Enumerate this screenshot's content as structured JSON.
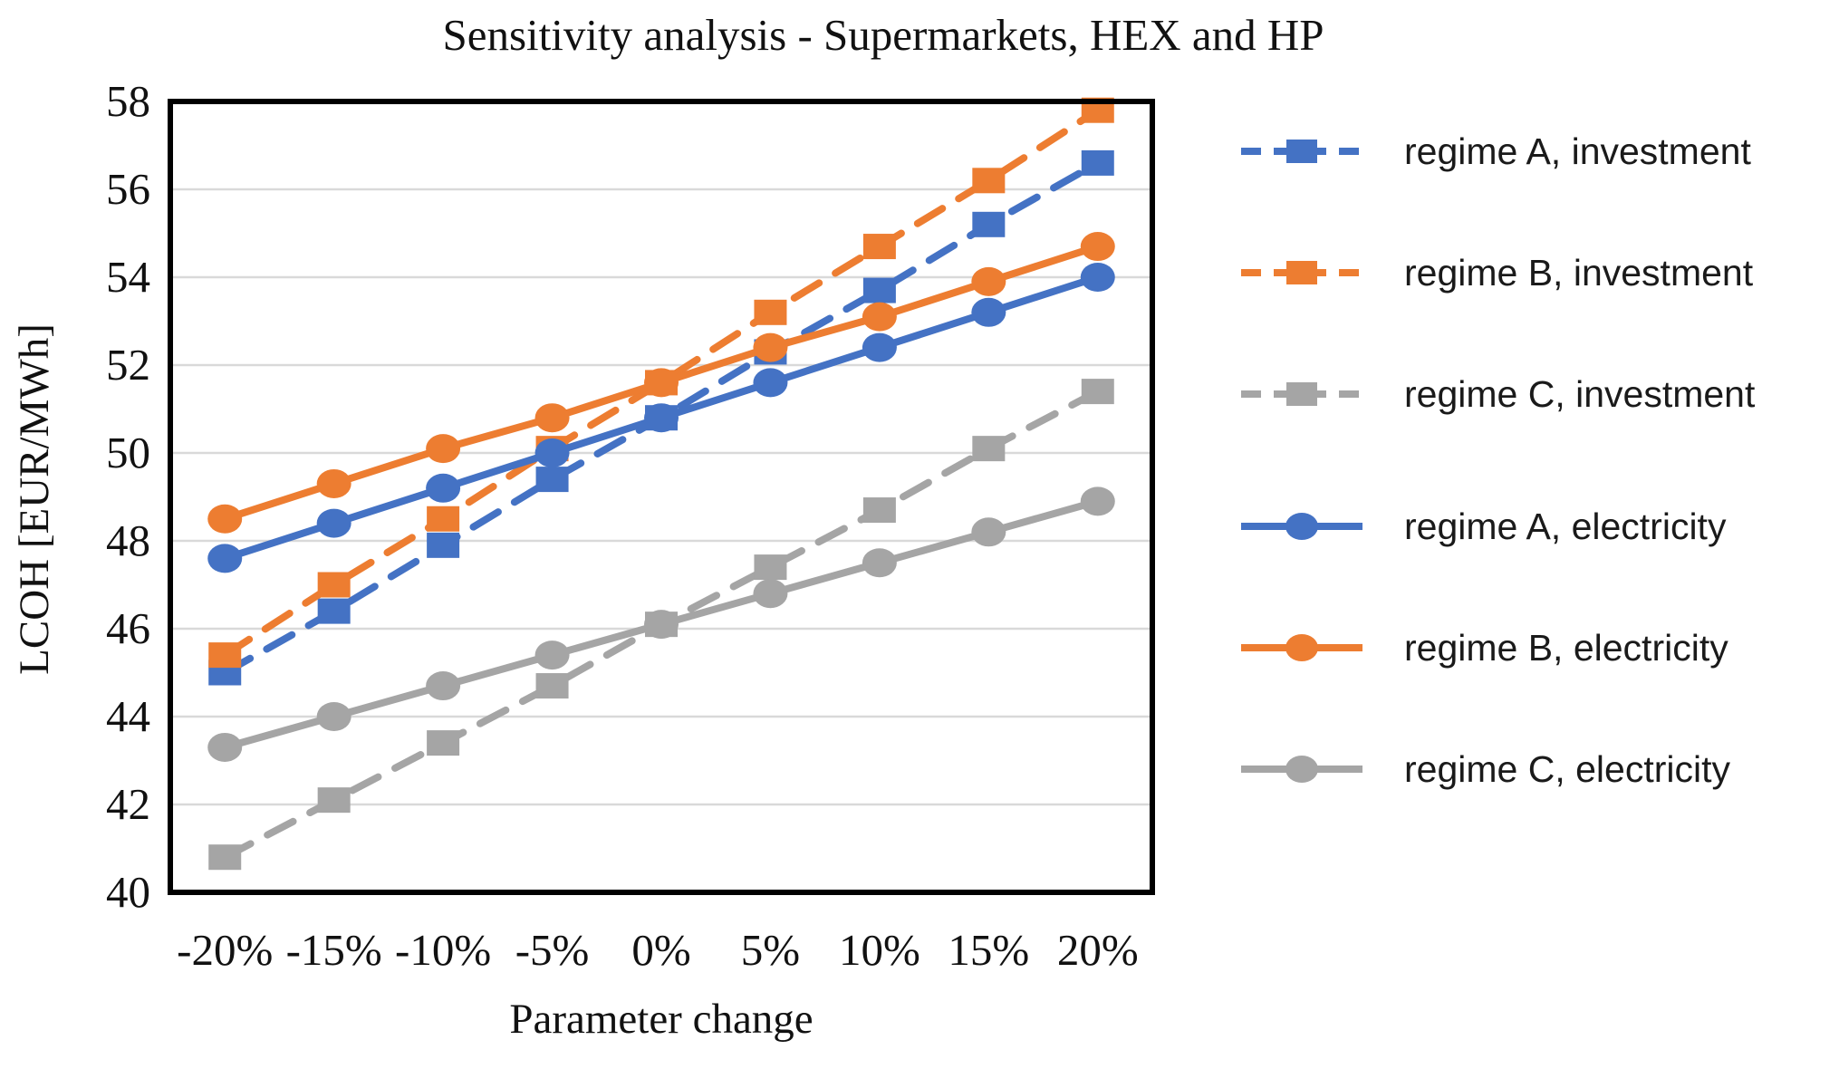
{
  "chart_data": {
    "type": "line",
    "title": "Sensitivity analysis - Supermarkets, HEX and HP",
    "xlabel": "Parameter change",
    "ylabel": "LCOH [EUR/MWh]",
    "ylim": [
      40,
      58
    ],
    "yticks": [
      40,
      42,
      44,
      46,
      48,
      50,
      52,
      54,
      56,
      58
    ],
    "categories": [
      "-20%",
      "-15%",
      "-10%",
      "-5%",
      "0%",
      "5%",
      "10%",
      "15%",
      "20%"
    ],
    "grid": "horizontal",
    "legend_position": "right",
    "colors": {
      "blue": "#4472C4",
      "orange": "#ED7D31",
      "gray": "#A5A5A5",
      "gridline": "#D9D9D9",
      "frame": "#000000"
    },
    "series": [
      {
        "name": "regime A, investment",
        "color": "#4472C4",
        "line": "dashed",
        "marker": "square",
        "values": [
          45.0,
          46.4,
          47.9,
          49.4,
          50.8,
          52.3,
          53.7,
          55.2,
          56.6
        ]
      },
      {
        "name": "regime B, investment",
        "color": "#ED7D31",
        "line": "dashed",
        "marker": "square",
        "values": [
          45.4,
          47.0,
          48.5,
          50.1,
          51.6,
          53.2,
          54.7,
          56.2,
          57.8
        ]
      },
      {
        "name": "regime C, investment",
        "color": "#A5A5A5",
        "line": "dashed",
        "marker": "square",
        "values": [
          40.8,
          42.1,
          43.4,
          44.7,
          46.1,
          47.4,
          48.7,
          50.1,
          51.4
        ]
      },
      {
        "name": "regime A, electricity",
        "color": "#4472C4",
        "line": "solid",
        "marker": "circle",
        "values": [
          47.6,
          48.4,
          49.2,
          50.0,
          50.8,
          51.6,
          52.4,
          53.2,
          54.0
        ]
      },
      {
        "name": "regime B, electricity",
        "color": "#ED7D31",
        "line": "solid",
        "marker": "circle",
        "values": [
          48.5,
          49.3,
          50.1,
          50.8,
          51.6,
          52.4,
          53.1,
          53.9,
          54.7
        ]
      },
      {
        "name": "regime C, electricity",
        "color": "#A5A5A5",
        "line": "solid",
        "marker": "circle",
        "values": [
          43.3,
          44.0,
          44.7,
          45.4,
          46.1,
          46.8,
          47.5,
          48.2,
          48.9
        ]
      }
    ]
  }
}
